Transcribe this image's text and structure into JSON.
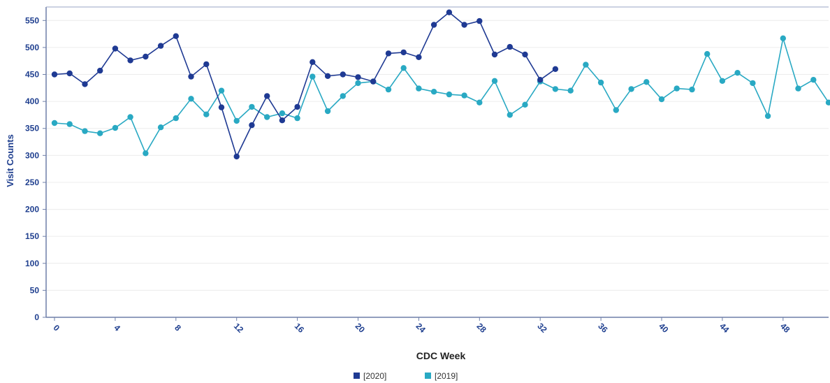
{
  "chart_data": {
    "type": "line",
    "title": "",
    "xlabel": "CDC Week",
    "ylabel": "Visit Counts",
    "xlim": [
      0,
      51
    ],
    "ylim": [
      0,
      575
    ],
    "yticks": [
      0,
      50,
      100,
      150,
      200,
      250,
      300,
      350,
      400,
      450,
      500,
      550
    ],
    "xticks": [
      0,
      4,
      8,
      12,
      16,
      20,
      24,
      28,
      32,
      36,
      40,
      44,
      48
    ],
    "grid": true,
    "legend_position": "bottom",
    "series": [
      {
        "name": "[2020]",
        "color": "#1f3a93",
        "x": [
          0,
          1,
          2,
          3,
          4,
          5,
          6,
          7,
          8,
          9,
          10,
          11,
          12,
          13,
          14,
          15,
          16,
          17,
          18,
          19,
          20,
          21,
          22,
          23,
          24,
          25,
          26,
          27,
          28,
          29,
          30,
          31,
          32,
          33
        ],
        "values": [
          450,
          452,
          432,
          457,
          498,
          476,
          483,
          503,
          521,
          446,
          469,
          389,
          298,
          356,
          410,
          365,
          390,
          473,
          447,
          450,
          445,
          437,
          489,
          491,
          482,
          542,
          565,
          542,
          549,
          487,
          501,
          487,
          440,
          460
        ]
      },
      {
        "name": "[2019]",
        "color": "#29a9c3",
        "x": [
          0,
          1,
          2,
          3,
          4,
          5,
          6,
          7,
          8,
          9,
          10,
          11,
          12,
          13,
          14,
          15,
          16,
          17,
          18,
          19,
          20,
          21,
          22,
          23,
          24,
          25,
          26,
          27,
          28,
          29,
          30,
          31,
          32,
          33,
          34,
          35,
          36,
          37,
          38,
          39,
          40,
          41,
          42,
          43,
          44,
          45,
          46,
          47,
          48,
          49,
          50,
          51
        ],
        "values": [
          360,
          358,
          345,
          341,
          351,
          371,
          304,
          352,
          369,
          405,
          376,
          420,
          364,
          390,
          371,
          378,
          369,
          446,
          382,
          410,
          434,
          437,
          422,
          462,
          424,
          418,
          413,
          411,
          398,
          438,
          375,
          394,
          437,
          423,
          420,
          468,
          435,
          384,
          423,
          436,
          404,
          424,
          422,
          488,
          438,
          453,
          434,
          373,
          517,
          424,
          440,
          398
        ]
      }
    ]
  }
}
